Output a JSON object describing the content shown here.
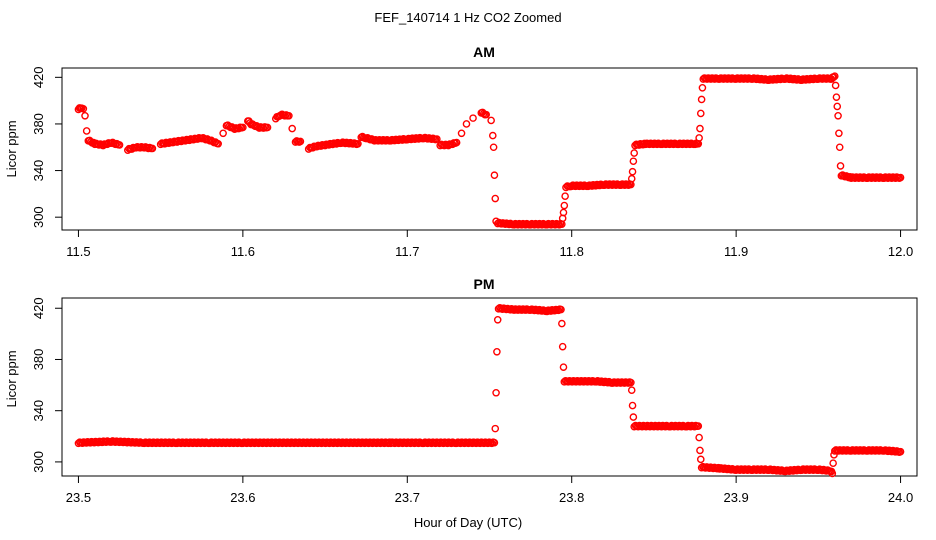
{
  "figure": {
    "title": "FEF_140714  1 Hz CO2 Zoomed",
    "xlabel": "Hour of Day (UTC)"
  },
  "style": {
    "point_color": "#ff0000",
    "axis_color": "#000000",
    "background": "#ffffff"
  },
  "chart_data": [
    {
      "type": "scatter",
      "title": "AM",
      "ylabel": "Licor ppm",
      "xlim": [
        11.49,
        12.01
      ],
      "ylim": [
        289,
        428
      ],
      "xticks": [
        11.5,
        11.6,
        11.7,
        11.8,
        11.9,
        12.0
      ],
      "xtick_labels": [
        "11.5",
        "11.6",
        "11.7",
        "11.8",
        "11.9",
        "12.0"
      ],
      "yticks": [
        300,
        340,
        380,
        420
      ],
      "ytick_labels": [
        "300",
        "340",
        "380",
        "420"
      ],
      "marker": "open-circle",
      "series": [
        {
          "points": [
            [
              11.5,
              393
            ],
            [
              11.502,
              394
            ],
            [
              11.503,
              393
            ],
            [
              11.504,
              387
            ],
            [
              11.505,
              374
            ],
            [
              11.506,
              366
            ],
            [
              11.51,
              363
            ],
            [
              11.515,
              362
            ],
            [
              11.52,
              364
            ],
            [
              11.525,
              362
            ],
            [
              11.53,
              358
            ],
            [
              11.535,
              360
            ],
            [
              11.54,
              360
            ],
            [
              11.545,
              359
            ],
            [
              11.55,
              363
            ],
            [
              11.555,
              364
            ],
            [
              11.56,
              365
            ],
            [
              11.565,
              366
            ],
            [
              11.57,
              367
            ],
            [
              11.575,
              368
            ],
            [
              11.58,
              366
            ],
            [
              11.585,
              363
            ],
            [
              11.588,
              372
            ],
            [
              11.59,
              379
            ],
            [
              11.595,
              376
            ],
            [
              11.6,
              377
            ],
            [
              11.603,
              383
            ],
            [
              11.605,
              380
            ],
            [
              11.61,
              377
            ],
            [
              11.615,
              377
            ],
            [
              11.62,
              385
            ],
            [
              11.623,
              388
            ],
            [
              11.628,
              387
            ],
            [
              11.63,
              376
            ],
            [
              11.632,
              365
            ],
            [
              11.635,
              365
            ],
            [
              11.64,
              359
            ],
            [
              11.645,
              361
            ],
            [
              11.65,
              362
            ],
            [
              11.66,
              364
            ],
            [
              11.67,
              363
            ],
            [
              11.672,
              369
            ],
            [
              11.675,
              368
            ],
            [
              11.68,
              366
            ],
            [
              11.69,
              366
            ],
            [
              11.7,
              367
            ],
            [
              11.71,
              368
            ],
            [
              11.718,
              367
            ],
            [
              11.72,
              362
            ],
            [
              11.725,
              362
            ],
            [
              11.73,
              364
            ],
            [
              11.733,
              372
            ],
            [
              11.736,
              380
            ],
            [
              11.74,
              385
            ],
            [
              11.745,
              390
            ],
            [
              11.748,
              388
            ],
            [
              11.751,
              383
            ],
            [
              11.752,
              370
            ],
            [
              11.7525,
              360
            ],
            [
              11.753,
              336
            ],
            [
              11.7535,
              316
            ],
            [
              11.754,
              297
            ],
            [
              11.755,
              295
            ],
            [
              11.765,
              294
            ],
            [
              11.775,
              294
            ],
            [
              11.785,
              294
            ],
            [
              11.794,
              294
            ],
            [
              11.7945,
              299
            ],
            [
              11.795,
              304
            ],
            [
              11.7955,
              310
            ],
            [
              11.796,
              318
            ],
            [
              11.7965,
              326
            ],
            [
              11.8,
              327
            ],
            [
              11.81,
              327
            ],
            [
              11.82,
              328
            ],
            [
              11.83,
              328
            ],
            [
              11.836,
              328
            ],
            [
              11.8365,
              333
            ],
            [
              11.837,
              339
            ],
            [
              11.8375,
              348
            ],
            [
              11.838,
              355
            ],
            [
              11.8385,
              362
            ],
            [
              11.845,
              363
            ],
            [
              11.855,
              363
            ],
            [
              11.865,
              363
            ],
            [
              11.875,
              363
            ],
            [
              11.877,
              363
            ],
            [
              11.8775,
              368
            ],
            [
              11.878,
              376
            ],
            [
              11.8785,
              389
            ],
            [
              11.879,
              401
            ],
            [
              11.8795,
              411
            ],
            [
              11.88,
              419
            ],
            [
              11.89,
              419
            ],
            [
              11.9,
              419
            ],
            [
              11.91,
              419
            ],
            [
              11.92,
              418
            ],
            [
              11.93,
              419
            ],
            [
              11.94,
              418
            ],
            [
              11.95,
              419
            ],
            [
              11.958,
              419
            ],
            [
              11.96,
              421
            ],
            [
              11.9605,
              413
            ],
            [
              11.961,
              403
            ],
            [
              11.9615,
              395
            ],
            [
              11.962,
              387
            ],
            [
              11.9625,
              372
            ],
            [
              11.963,
              360
            ],
            [
              11.9635,
              344
            ],
            [
              11.964,
              336
            ],
            [
              11.97,
              334
            ],
            [
              11.98,
              334
            ],
            [
              11.99,
              334
            ],
            [
              12.0,
              334
            ]
          ]
        }
      ]
    },
    {
      "type": "scatter",
      "title": "PM",
      "ylabel": "Licor ppm",
      "xlim": [
        23.49,
        24.01
      ],
      "ylim": [
        289,
        428
      ],
      "xticks": [
        23.5,
        23.6,
        23.7,
        23.8,
        23.9,
        24.0
      ],
      "xtick_labels": [
        "23.5",
        "23.6",
        "23.7",
        "23.8",
        "23.9",
        "24.0"
      ],
      "yticks": [
        300,
        340,
        380,
        420
      ],
      "ytick_labels": [
        "300",
        "340",
        "380",
        "420"
      ],
      "marker": "open-circle",
      "series": [
        {
          "points": [
            [
              23.5,
              315
            ],
            [
              23.52,
              316
            ],
            [
              23.54,
              315
            ],
            [
              23.56,
              315
            ],
            [
              23.58,
              315
            ],
            [
              23.6,
              315
            ],
            [
              23.624,
              315
            ],
            [
              23.667,
              315
            ],
            [
              23.69,
              315
            ],
            [
              23.71,
              315
            ],
            [
              23.73,
              315
            ],
            [
              23.753,
              315
            ],
            [
              23.7535,
              326
            ],
            [
              23.754,
              354
            ],
            [
              23.7545,
              386
            ],
            [
              23.755,
              411
            ],
            [
              23.7555,
              420
            ],
            [
              23.765,
              419
            ],
            [
              23.775,
              419
            ],
            [
              23.785,
              418
            ],
            [
              23.7935,
              419
            ],
            [
              23.794,
              408
            ],
            [
              23.7945,
              390
            ],
            [
              23.795,
              374
            ],
            [
              23.7955,
              363
            ],
            [
              23.805,
              363
            ],
            [
              23.815,
              363
            ],
            [
              23.825,
              362
            ],
            [
              23.836,
              362
            ],
            [
              23.8365,
              356
            ],
            [
              23.837,
              344
            ],
            [
              23.8375,
              335
            ],
            [
              23.838,
              328
            ],
            [
              23.85,
              328
            ],
            [
              23.86,
              328
            ],
            [
              23.87,
              328
            ],
            [
              23.877,
              328
            ],
            [
              23.8775,
              319
            ],
            [
              23.878,
              309
            ],
            [
              23.8785,
              302
            ],
            [
              23.879,
              296
            ],
            [
              23.89,
              295
            ],
            [
              23.9,
              294
            ],
            [
              23.91,
              294
            ],
            [
              23.92,
              294
            ],
            [
              23.93,
              293
            ],
            [
              23.94,
              294
            ],
            [
              23.95,
              294
            ],
            [
              23.958,
              293
            ],
            [
              23.9585,
              291
            ],
            [
              23.959,
              299
            ],
            [
              23.9595,
              306
            ],
            [
              23.96,
              309
            ],
            [
              23.97,
              309
            ],
            [
              23.98,
              309
            ],
            [
              23.99,
              309
            ],
            [
              24.0,
              308
            ]
          ]
        }
      ]
    }
  ]
}
